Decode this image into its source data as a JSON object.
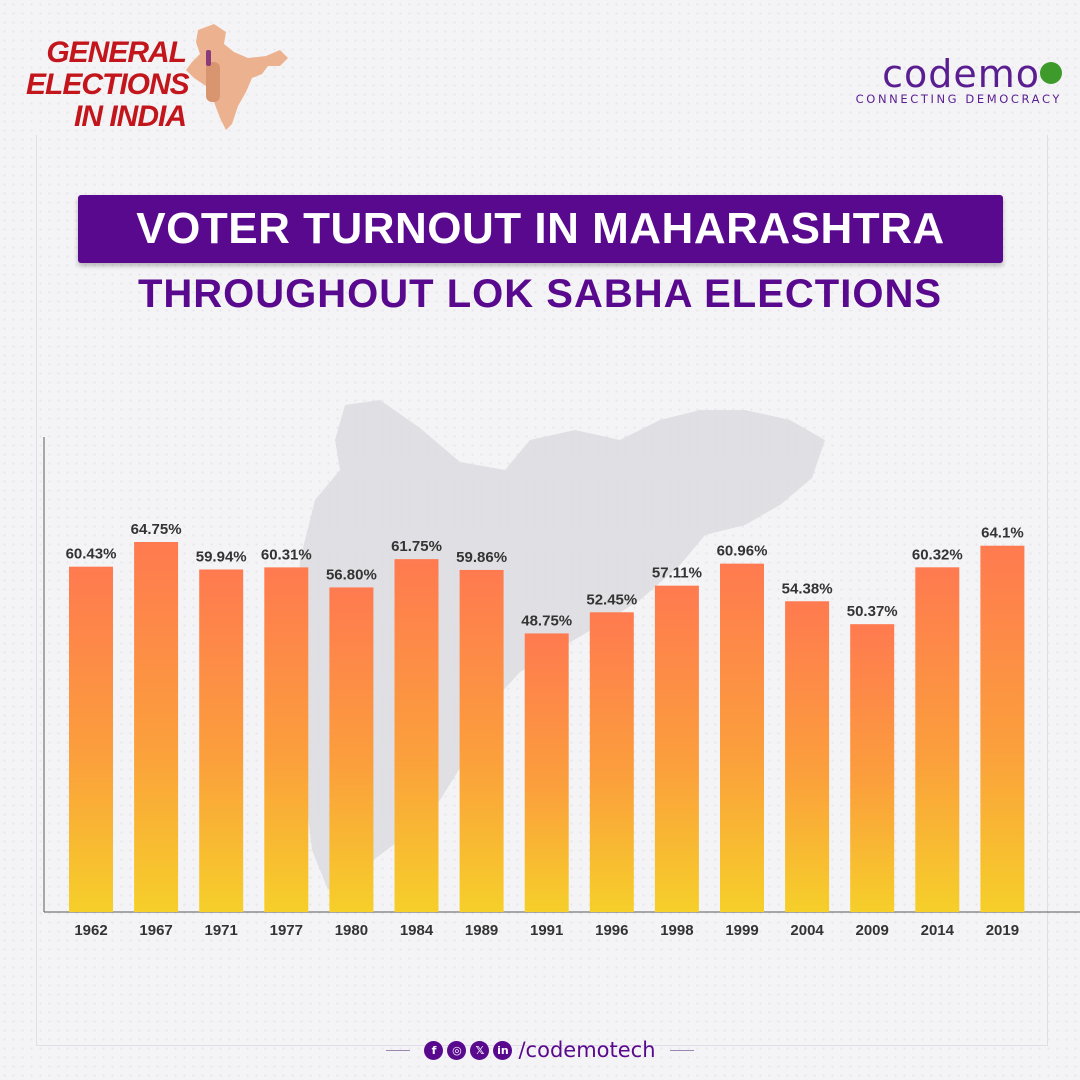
{
  "brand_left": {
    "lines": [
      "GENERAL",
      "ELECTIONS",
      "IN INDIA"
    ]
  },
  "brand_right": {
    "name": "codemo",
    "tagline": "CONNECTING DEMOCRACY"
  },
  "title": "VOTER TURNOUT IN MAHARASHTRA",
  "subtitle": "THROUGHOUT LOK SABHA ELECTIONS",
  "footer": {
    "handle": "/codemotech",
    "icons": [
      "facebook-icon",
      "instagram-icon",
      "x-icon",
      "linkedin-icon"
    ]
  },
  "colors": {
    "purple": "#59098e",
    "red": "#c3161c",
    "green": "#3e9b2b",
    "bar_top": "#ff7a50",
    "bar_bottom": "#f6cf2a"
  },
  "chart_data": {
    "type": "bar",
    "categories": [
      "1962",
      "1967",
      "1971",
      "1977",
      "1980",
      "1984",
      "1989",
      "1991",
      "1996",
      "1998",
      "1999",
      "2004",
      "2009",
      "2014",
      "2019"
    ],
    "values": [
      60.43,
      64.75,
      59.94,
      60.31,
      56.8,
      61.75,
      59.86,
      48.75,
      52.45,
      57.11,
      60.96,
      54.38,
      50.37,
      60.32,
      64.1
    ],
    "labels": [
      "60.43%",
      "64.75%",
      "59.94%",
      "60.31%",
      "56.80%",
      "61.75%",
      "59.86%",
      "48.75%",
      "52.45%",
      "57.11%",
      "60.96%",
      "54.38%",
      "50.37%",
      "60.32%",
      "64.1%"
    ],
    "title": "",
    "xlabel": "",
    "ylabel": "",
    "ylim": [
      0,
      72
    ],
    "grid": false,
    "legend": "none"
  }
}
